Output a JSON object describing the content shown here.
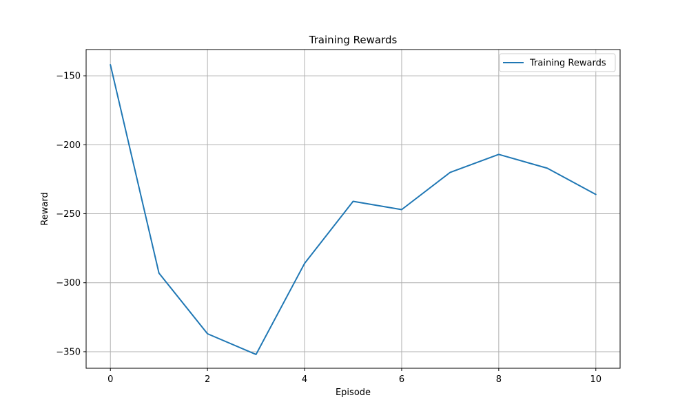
{
  "chart_data": {
    "type": "line",
    "title": "Training Rewards",
    "xlabel": "Episode",
    "ylabel": "Reward",
    "xlim": [
      -0.5,
      10.5
    ],
    "ylim": [
      -362,
      -131
    ],
    "xticks": [
      0,
      2,
      4,
      6,
      8,
      10
    ],
    "yticks": [
      -350,
      -300,
      -250,
      -200,
      -150
    ],
    "xtick_labels": [
      "0",
      "2",
      "4",
      "6",
      "8",
      "10"
    ],
    "ytick_labels": [
      "−350",
      "−300",
      "−250",
      "−200",
      "−150"
    ],
    "grid": true,
    "legend_position": "top-right",
    "series": [
      {
        "name": "Training Rewards",
        "color": "#1f77b4",
        "x": [
          0,
          1,
          2,
          3,
          4,
          5,
          6,
          7,
          8,
          9,
          10
        ],
        "y": [
          -142,
          -293,
          -337,
          -352,
          -286,
          -241,
          -247,
          -220,
          -207,
          -217,
          -236
        ]
      }
    ]
  }
}
